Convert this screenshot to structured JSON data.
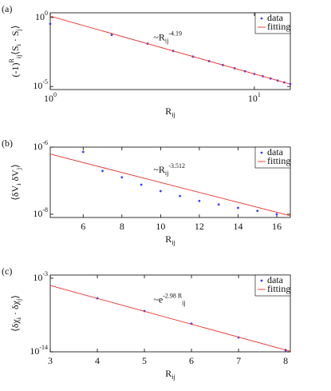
{
  "chart_data": [
    {
      "type": "scatter",
      "panel_label": "(a)",
      "xlabel": "R_{ij}",
      "ylabel": "(-1)^{R_{ij}}⟨S_{i} · S_{j}⟩",
      "annotation": "~R_{ij}^{-4.19}",
      "xscale": "log",
      "yscale": "log",
      "xlim": [
        1,
        15
      ],
      "ylim": [
        6e-06,
        2.2
      ],
      "xticks": [
        {
          "value": 1,
          "label": "10^{0}"
        },
        {
          "value": 10,
          "label": "10^{1}"
        }
      ],
      "yticks": [
        {
          "value": 1,
          "label": "10^{0}"
        },
        {
          "value": 1e-05,
          "label": "10^{-5}"
        }
      ],
      "legend": "upper right",
      "series": [
        {
          "name": "data",
          "color": "#3a3aff",
          "mode": "markers",
          "x": [
            1,
            2,
            3,
            4,
            5,
            6,
            7,
            8,
            9,
            10,
            11,
            12,
            13,
            14,
            15
          ],
          "values": [
            0.35,
            0.055,
            0.0126,
            0.0038,
            0.00148,
            0.00069,
            0.00036,
            0.00021,
            0.000127,
            8.1e-05,
            5.5e-05,
            3.8e-05,
            2.7e-05,
            2e-05,
            1.5e-05
          ]
        },
        {
          "name": "fitting",
          "color": "#e8322e",
          "mode": "line",
          "x": [
            1,
            15
          ],
          "values": [
            1.26,
            1.49e-05
          ]
        }
      ]
    },
    {
      "type": "scatter",
      "panel_label": "(b)",
      "xlabel": "R_{ij}",
      "ylabel": "⟨δV_{i} δV_{j}⟩",
      "annotation": "~R_{ij}^{-3.512}",
      "xscale": "linear",
      "yscale": "log",
      "xlim": [
        4.3,
        16.7
      ],
      "ylim": [
        8e-09,
        1e-06
      ],
      "xticks": [
        6,
        8,
        10,
        12,
        14,
        16
      ],
      "yticks": [
        {
          "value": 1e-06,
          "label": "10^{-6}"
        },
        {
          "value": 1e-08,
          "label": "10^{-8}"
        }
      ],
      "legend": "upper right",
      "series": [
        {
          "name": "data",
          "color": "#3a3aff",
          "mode": "markers",
          "x": [
            6,
            7,
            8,
            9,
            10,
            11,
            12,
            13,
            14,
            15,
            16
          ],
          "values": [
            7.2e-07,
            1.95e-07,
            1.26e-07,
            7.6e-08,
            4.9e-08,
            3.5e-08,
            2.5e-08,
            1.95e-08,
            1.55e-08,
            1.26e-08,
            1e-08
          ]
        },
        {
          "name": "fitting",
          "color": "#e8322e",
          "mode": "line",
          "x": [
            4.3,
            16.7
          ],
          "values": [
            6.2e-07,
            9e-09
          ]
        }
      ]
    },
    {
      "type": "scatter",
      "panel_label": "(c)",
      "xlabel": "R_{ij}",
      "ylabel": "⟨δχ_{i} · δχ_{j}⟩",
      "annotation": "~e^{-2.98 R_{ij}}",
      "xscale": "linear",
      "yscale": "log",
      "xlim": [
        3,
        8.1
      ],
      "ylim": [
        1e-14,
        0.003
      ],
      "xticks": [
        3,
        4,
        5,
        6,
        7,
        8
      ],
      "yticks": [
        {
          "value": 0.001,
          "label": "10^{-3}"
        },
        {
          "value": 1e-14,
          "label": "10^{-14}"
        }
      ],
      "legend": "upper right",
      "series": [
        {
          "name": "data",
          "color": "#3a3aff",
          "mode": "markers",
          "x": [
            4,
            5,
            6,
            7,
            8
          ],
          "values": [
            1e-06,
            1.26e-08,
            1.6e-10,
            1.4e-12,
            1.7e-14
          ]
        },
        {
          "name": "fitting",
          "color": "#e8322e",
          "mode": "line",
          "x": [
            3,
            8.1
          ],
          "values": [
            8.3e-05,
            1.2e-14
          ]
        }
      ]
    }
  ]
}
